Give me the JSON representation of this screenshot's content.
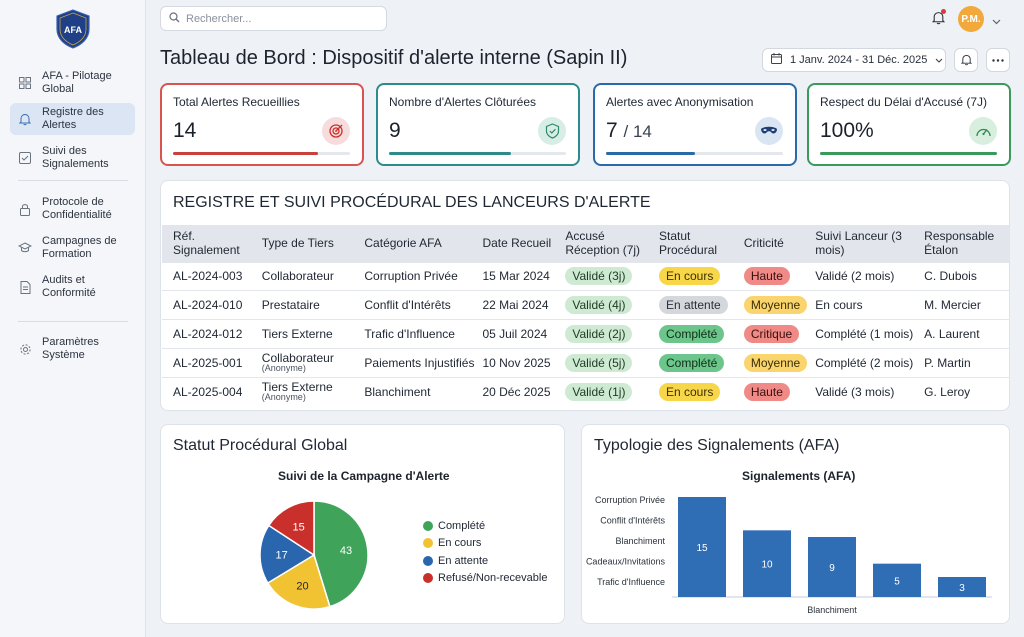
{
  "app": {
    "logo_text": "AFA"
  },
  "sidebar": {
    "items": [
      {
        "label": "AFA - Pilotage Global",
        "icon": "grid-icon"
      },
      {
        "label": "Registre des Alertes",
        "icon": "bell-icon",
        "active": true
      },
      {
        "label": "Suivi des Signalements",
        "icon": "checkbox-icon"
      },
      {
        "label": "Protocole de Confidentialité",
        "icon": "lock-icon"
      },
      {
        "label": "Campagnes de Formation",
        "icon": "graduation-cap-icon"
      },
      {
        "label": "Audits et Conformité",
        "icon": "document-icon"
      },
      {
        "label": "Paramètres Système",
        "icon": "gear-icon"
      }
    ]
  },
  "topbar": {
    "search_placeholder": "Rechercher...",
    "avatar_initials": "P.M."
  },
  "header": {
    "title": "Tableau de Bord : Dispositif d'alerte interne (Sapin II)",
    "date_range": "1 Janv. 2024 - 31 Déc. 2025"
  },
  "kpis": [
    {
      "title": "Total Alertes Recueillies",
      "value": "14",
      "sub": "",
      "icon": "target-icon",
      "color": "#d9534f",
      "progress": 0.82
    },
    {
      "title": "Nombre d'Alertes Clôturées",
      "value": "9",
      "sub": "",
      "icon": "shield-check-icon",
      "color": "#2e8b8b",
      "progress": 0.69
    },
    {
      "title": "Alertes avec Anonymisation",
      "value": "7",
      "sub": "/ 14",
      "icon": "mask-icon",
      "color": "#2a6aa8",
      "progress": 0.5
    },
    {
      "title": "Respect du Délai d'Accusé (7J)",
      "value": "100%",
      "sub": "",
      "icon": "gauge-icon",
      "color": "#3a9a5b",
      "progress": 1.0
    }
  ],
  "registry": {
    "title": "REGISTRE ET SUIVI PROCÉDURAL DES LANCEURS D'ALERTE",
    "columns": [
      "Réf. Signalement",
      "Type de Tiers",
      "Catégorie AFA",
      "Date Recueil",
      "Accusé Réception (7j)",
      "Statut Procédural",
      "Criticité",
      "Suivi Lanceur (3 mois)",
      "Responsable Étalon"
    ],
    "rows": [
      {
        "ref": "AL-2024-003",
        "tiers": "Collaborateur",
        "tiers_note": "",
        "categorie": "Corruption Privée",
        "date": "15 Mar 2024",
        "accuse": "Validé (3j)",
        "statut": "En cours",
        "statut_style": "yellow",
        "criticite": "Haute",
        "crit_style": "red",
        "suivi": "Validé (2 mois)",
        "responsable": "C. Dubois"
      },
      {
        "ref": "AL-2024-010",
        "tiers": "Prestataire",
        "tiers_note": "",
        "categorie": "Conflit d'Intérêts",
        "date": "22 Mai 2024",
        "accuse": "Validé (4j)",
        "statut": "En attente",
        "statut_style": "grey",
        "criticite": "Moyenne",
        "crit_style": "orange",
        "suivi": "En cours",
        "responsable": "M. Mercier"
      },
      {
        "ref": "AL-2024-012",
        "tiers": "Tiers Externe",
        "tiers_note": "",
        "categorie": "Trafic d'Influence",
        "date": "05 Juil 2024",
        "accuse": "Validé (2j)",
        "statut": "Complété",
        "statut_style": "teal",
        "criticite": "Critique",
        "crit_style": "red",
        "suivi": "Complété (1 mois)",
        "responsable": "A. Laurent"
      },
      {
        "ref": "AL-2025-001",
        "tiers": "Collaborateur",
        "tiers_note": "(Anonyme)",
        "categorie": "Paiements Injustifiés",
        "date": "10 Nov 2025",
        "accuse": "Validé (5j)",
        "statut": "Complété",
        "statut_style": "teal",
        "criticite": "Moyenne",
        "crit_style": "orange",
        "suivi": "Complété (2 mois)",
        "responsable": "P. Martin"
      },
      {
        "ref": "AL-2025-004",
        "tiers": "Tiers Externe",
        "tiers_note": "(Anonyme)",
        "categorie": "Blanchiment",
        "date": "20 Déc 2025",
        "accuse": "Validé (1j)",
        "statut": "En cours",
        "statut_style": "yellow",
        "criticite": "Haute",
        "crit_style": "red",
        "suivi": "Validé (3 mois)",
        "responsable": "G. Leroy"
      }
    ]
  },
  "pie_panel": {
    "title": "Statut Procédural Global"
  },
  "bar_panel": {
    "title": "Typologie des Signalements (AFA)"
  },
  "chart_data": [
    {
      "type": "pie",
      "title": "Suivi de la Campagne d'Alerte",
      "labels": [
        "Complété",
        "En cours",
        "En attente",
        "Refusé/Non-recevable"
      ],
      "values": [
        43,
        20,
        17,
        15
      ],
      "colors": [
        "#3fa35a",
        "#f1c232",
        "#2a66ad",
        "#c9302c"
      ],
      "legend": "right"
    },
    {
      "type": "bar",
      "title": "Signalements (AFA)",
      "categories": [
        "Corruption Privée",
        "Conflit d'Intérêts",
        "Blanchiment",
        "Cadeaux/Invitations",
        "Trafic d'Influence"
      ],
      "values": [
        15,
        10,
        9,
        5,
        3
      ],
      "xlabel": "Blanchiment",
      "color": "#2f6db5"
    }
  ]
}
